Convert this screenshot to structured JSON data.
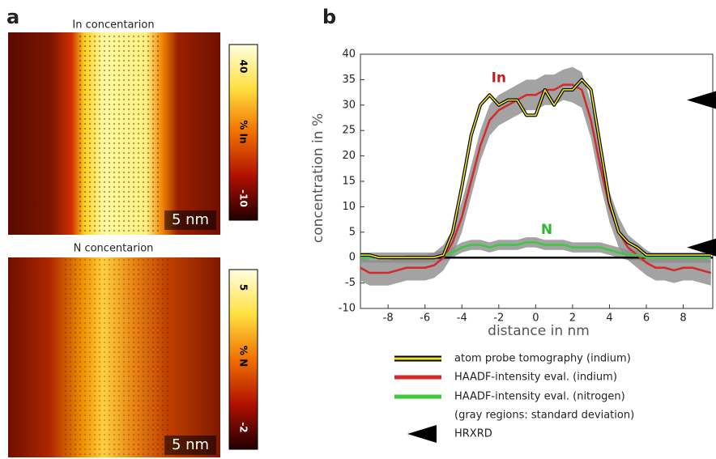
{
  "panel_a_label": "a",
  "maps": [
    {
      "title": "In concentarion",
      "scale_bar": "5 nm",
      "colorbar": {
        "max": "40",
        "label": "% In",
        "min": "-10"
      }
    },
    {
      "title": "N concentarion",
      "scale_bar": "5 nm",
      "colorbar": {
        "max": "5",
        "label": "% N",
        "min": "-2"
      }
    }
  ],
  "chart_data": {
    "type": "line",
    "panel_label": "b",
    "x_label": "distance in nm",
    "y_label": "concentration in %",
    "x": [
      -9.5,
      -9,
      -8.5,
      -8,
      -7.5,
      -7,
      -6.5,
      -6,
      -5.5,
      -5,
      -4.5,
      -4,
      -3.5,
      -3,
      -2.5,
      -2,
      -1.5,
      -1,
      -0.5,
      0,
      0.5,
      1,
      1.5,
      2,
      2.5,
      3,
      3.5,
      4,
      4.5,
      5,
      5.5,
      6,
      6.5,
      7,
      7.5,
      8,
      8.5,
      9,
      9.5
    ],
    "series": [
      {
        "name": "atom probe tomography (indium)",
        "color": "#f2e51c",
        "edge": "#000000",
        "values": [
          0.5,
          0.5,
          0,
          0,
          0,
          0,
          0,
          0,
          0,
          0.5,
          5,
          14,
          24,
          30,
          32,
          30,
          31,
          31,
          28,
          28,
          33,
          30,
          33,
          33,
          35,
          33,
          22,
          11,
          5,
          3,
          2,
          0.5,
          0.5,
          0.5,
          0.5,
          0.5,
          0.5,
          0.5,
          0.5
        ]
      },
      {
        "name": "HAADF-intensity eval. (indium)",
        "color": "#d42a2a",
        "values": [
          -2,
          -3,
          -3,
          -3,
          -2.5,
          -2,
          -2,
          -2,
          -1.5,
          0,
          3,
          8,
          15,
          22,
          27,
          29,
          30,
          31,
          32,
          32,
          33,
          33,
          34,
          34,
          33,
          27,
          18,
          10,
          5,
          2,
          0.5,
          -1,
          -2,
          -2,
          -2.5,
          -2,
          -2,
          -2.5,
          -3
        ],
        "std": [
          2.5,
          2.5,
          2.5,
          2.5,
          2.5,
          2.5,
          2.5,
          2.5,
          2.5,
          2.5,
          2.5,
          3,
          3,
          3,
          3,
          3,
          3,
          3,
          3,
          3,
          3,
          3,
          3,
          3.5,
          3.5,
          3.5,
          3.5,
          3,
          3,
          2.5,
          2.5,
          2.5,
          2.5,
          2.5,
          2.5,
          2.5,
          2.5,
          2.5,
          2.5
        ]
      },
      {
        "name": "HAADF-intensity eval. (nitrogen)",
        "color": "#3ec83e",
        "values": [
          0,
          0,
          0,
          0,
          0,
          0,
          0,
          0,
          0,
          0.5,
          1,
          2,
          2.5,
          2.5,
          2,
          2.5,
          2.5,
          2.5,
          3,
          3,
          2.5,
          2.5,
          2.5,
          2,
          2,
          2,
          2,
          1.5,
          1,
          0.5,
          0.5,
          0,
          0,
          0,
          0,
          0,
          0,
          0,
          0
        ],
        "std": [
          1,
          1,
          1,
          1,
          1,
          1,
          1,
          1,
          1,
          1,
          1,
          1,
          1,
          1,
          1,
          1,
          1,
          1,
          1,
          1,
          1,
          1,
          1,
          1,
          1,
          1,
          1,
          1,
          1,
          1,
          1,
          1,
          1,
          1,
          1,
          1,
          1,
          1,
          1
        ]
      }
    ],
    "markers": {
      "name": "HRXRD",
      "color": "#000000",
      "values": [
        31,
        2
      ]
    },
    "legend_note": "(gray regions: standard deviation)",
    "band_color": "#8c8c8c",
    "annotations": [
      {
        "text": "In",
        "color": "#c0202a"
      },
      {
        "text": "N",
        "color": "#2fb82f"
      }
    ],
    "xlim": [
      -9.5,
      9.6
    ],
    "ylim": [
      -10,
      40
    ],
    "xticks": [
      -8,
      -6,
      -4,
      -2,
      0,
      2,
      4,
      6,
      8
    ],
    "yticks": [
      -10,
      -5,
      0,
      5,
      10,
      15,
      20,
      25,
      30,
      35,
      40
    ]
  }
}
